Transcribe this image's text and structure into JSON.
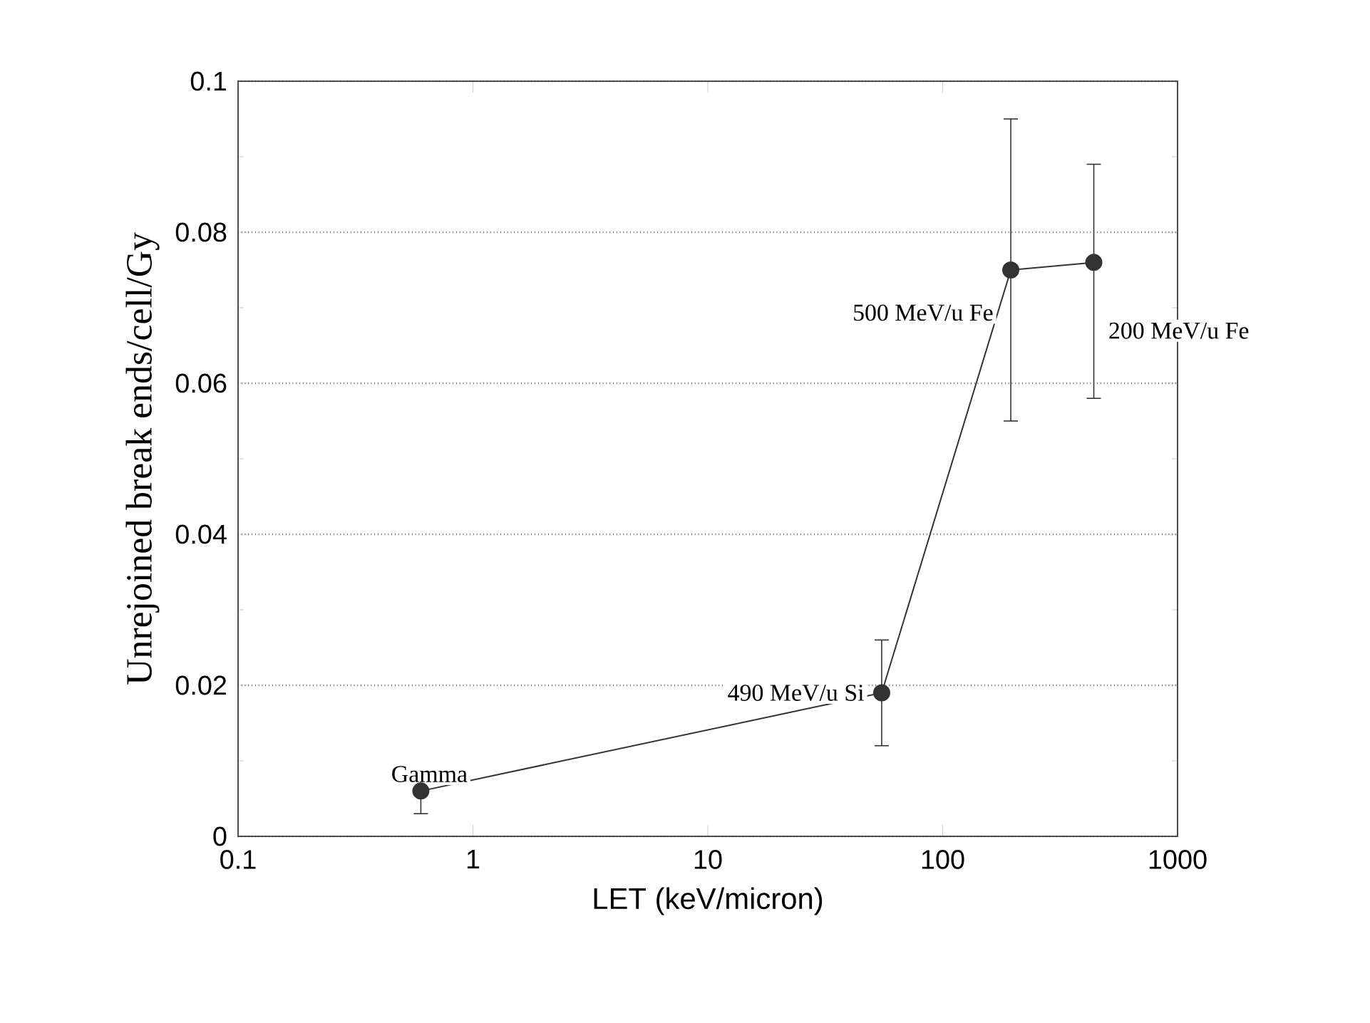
{
  "chart_data": {
    "type": "line",
    "xlabel": "LET (keV/micron)",
    "ylabel": "Unrejoined break ends/cell/Gy",
    "x": [
      0.6,
      55,
      195,
      440
    ],
    "series": [
      {
        "color": "#333333",
        "values": [
          0.006,
          0.019,
          0.075,
          0.076
        ],
        "errors": [
          [
            0.003,
            0.0075
          ],
          [
            0.012,
            0.026
          ],
          [
            0.055,
            0.095
          ],
          [
            0.058,
            0.089
          ]
        ]
      }
    ],
    "log": "x",
    "xlim": [
      0.1,
      1000
    ],
    "xticks": [
      0.1,
      1,
      10,
      100,
      1000
    ],
    "ylim": [
      0,
      0.1
    ],
    "yticks": [
      0,
      0.02,
      0.04,
      0.06,
      0.08,
      0.1
    ],
    "grid": "y",
    "marker": "circle",
    "line_style": "solid",
    "annotations": [
      {
        "text": "Gamma",
        "x": 0.6,
        "y": 0.006
      },
      {
        "text": "490 MeV/u Si",
        "x": 55,
        "y": 0.019
      },
      {
        "text": "500 MeV/u Fe",
        "x": 195,
        "y": 0.075
      },
      {
        "text": "200 MeV/u Fe",
        "x": 440,
        "y": 0.076
      }
    ]
  }
}
